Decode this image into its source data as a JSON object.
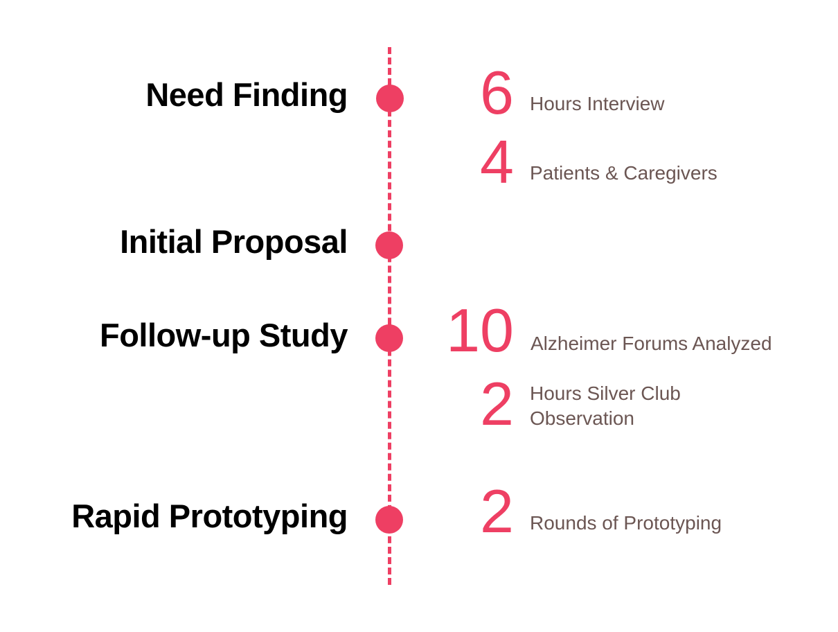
{
  "phases": [
    {
      "label": "Need Finding"
    },
    {
      "label": "Initial Proposal"
    },
    {
      "label": "Follow-up Study"
    },
    {
      "label": "Rapid Prototyping"
    }
  ],
  "stats": [
    {
      "number": "6",
      "text": "Hours Interview"
    },
    {
      "number": "4",
      "text": "Patients & Caregivers"
    },
    {
      "number": "10",
      "text": "Alzheimer Forums Analyzed"
    },
    {
      "number": "2",
      "text_lines": [
        "Hours Silver Club",
        "Observation"
      ]
    },
    {
      "number": "2",
      "text": "Rounds of Prototyping"
    }
  ],
  "colors": {
    "accent": "#ee3f63",
    "heading": "#000000",
    "body": "#6b5653"
  }
}
